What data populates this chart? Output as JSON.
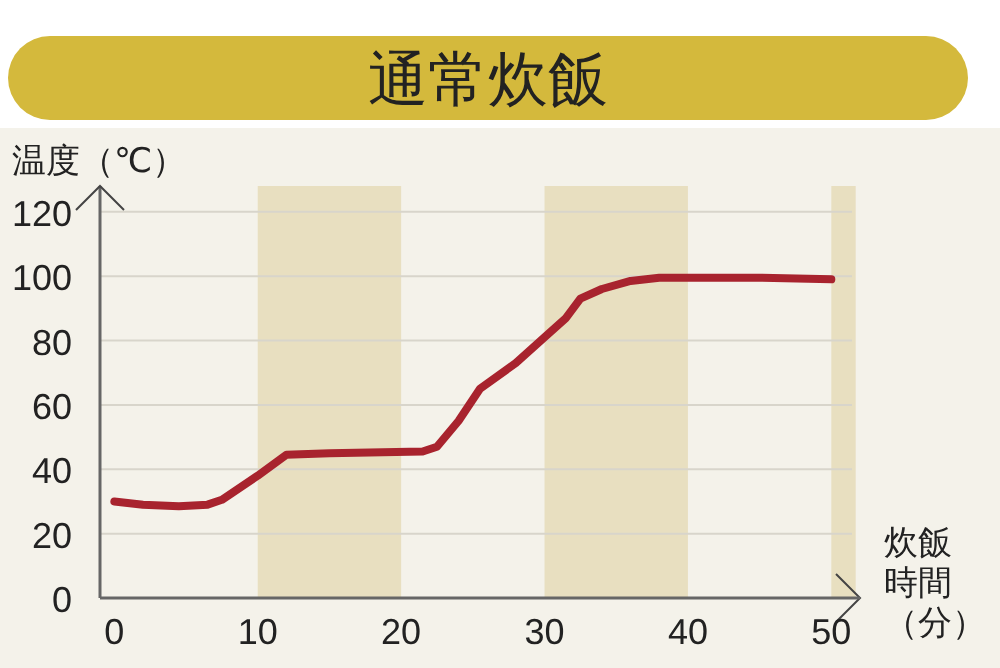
{
  "chart_data": {
    "type": "line",
    "title": "通常炊飯",
    "ylabel": "温度（℃）",
    "xlabel": "炊飯時間（分）",
    "xlim": [
      -1,
      52
    ],
    "ylim": [
      0,
      128
    ],
    "xticks": [
      0,
      10,
      20,
      30,
      40,
      50
    ],
    "yticks": [
      0,
      20,
      40,
      60,
      80,
      100,
      120
    ],
    "grid": "y",
    "bands": [
      {
        "axis": "x",
        "from": 10,
        "to": 20,
        "color": "#e8dfc0"
      },
      {
        "axis": "x",
        "from": 30,
        "to": 40,
        "color": "#e8dfc0"
      },
      {
        "axis": "x",
        "from": 50,
        "to": 51.7,
        "color": "#e8dfc0"
      }
    ],
    "series": [
      {
        "color": "#a8232e",
        "x": [
          0,
          2,
          4.5,
          6.5,
          7.5,
          10,
          12,
          15,
          21.5,
          22.5,
          24,
          25.5,
          28,
          30,
          31.5,
          32.5,
          34,
          36,
          38,
          45,
          50
        ],
        "values": [
          30,
          29,
          28.5,
          29,
          30.5,
          38,
          44.5,
          45,
          45.5,
          47,
          55,
          65,
          73,
          81,
          87,
          93,
          96,
          98.5,
          99.5,
          99.5,
          99
        ]
      }
    ]
  }
}
